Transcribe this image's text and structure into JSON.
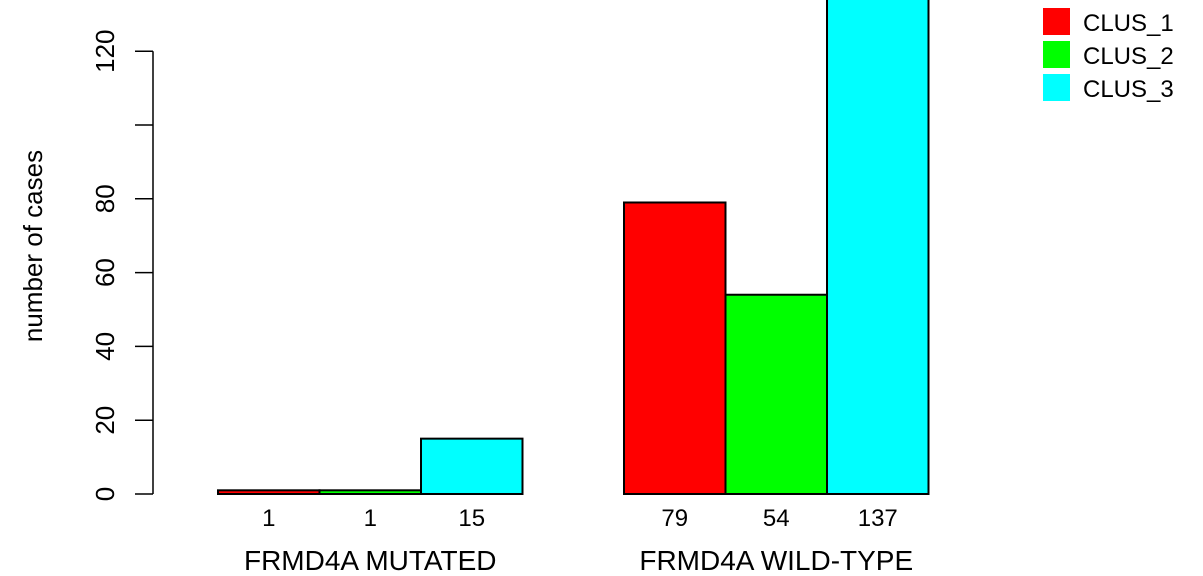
{
  "chart_data": {
    "type": "bar",
    "ylabel": "number of cases",
    "ylim": [
      0,
      137
    ],
    "yticks": [
      0,
      20,
      40,
      60,
      80,
      100,
      120
    ],
    "ytick_labels": [
      "0",
      "20",
      "40",
      "60",
      "80",
      "",
      "120"
    ],
    "groups": [
      {
        "label": "FRMD4A MUTATED",
        "values": [
          1,
          1,
          15
        ],
        "value_labels": [
          "1",
          "1",
          "15"
        ]
      },
      {
        "label": "FRMD4A WILD-TYPE",
        "values": [
          79,
          54,
          137
        ],
        "value_labels": [
          "79",
          "54",
          "137"
        ]
      }
    ],
    "series": [
      {
        "name": "CLUS_1",
        "color": "#ff0000"
      },
      {
        "name": "CLUS_2",
        "color": "#00ff00"
      },
      {
        "name": "CLUS_3",
        "color": "#00ffff"
      }
    ],
    "legend_position": "top-right"
  }
}
